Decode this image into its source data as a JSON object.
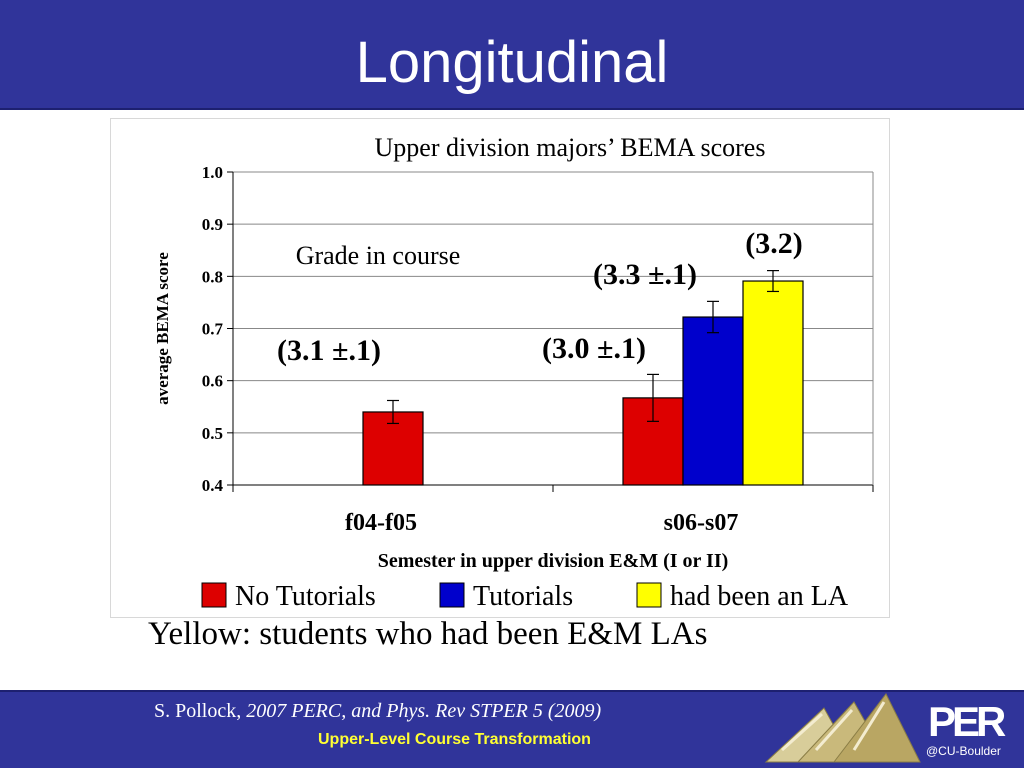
{
  "slide": {
    "title": "Longitudinal",
    "caption": "Yellow: students who had been E&M LAs",
    "citation_author": "S. Pollock, ",
    "citation_source": "2007 PERC, and Phys. Rev STPER 5 (2009)",
    "subtitle": "Upper-Level Course Transformation",
    "logo_text": "PER",
    "logo_sub": "@CU-Boulder",
    "header_color": "#30349a"
  },
  "chart_data": {
    "type": "bar",
    "title": "Upper division majors’ BEMA scores",
    "xlabel": "Semester in upper division E&M (I or II)",
    "ylabel": "average BEMA score",
    "ylim": [
      0.4,
      1.0
    ],
    "yticks": [
      "0.4",
      "0.5",
      "0.6",
      "0.7",
      "0.8",
      "0.9",
      "1.0"
    ],
    "categories": [
      "f04-f05",
      "s06-s07"
    ],
    "series": [
      {
        "name": "No Tutorials",
        "color": "#dd0000",
        "values": [
          0.54,
          0.567
        ],
        "errors": [
          0.022,
          0.045
        ]
      },
      {
        "name": "Tutorials",
        "color": "#0000cc",
        "values": [
          null,
          0.722
        ],
        "errors": [
          null,
          0.03
        ]
      },
      {
        "name": "had been an LA",
        "color": "#ffff00",
        "values": [
          null,
          0.791
        ],
        "errors": [
          null,
          0.02
        ]
      }
    ],
    "annotations": [
      {
        "text": "Grade in course"
      },
      {
        "text": "(3.1 ±.1)"
      },
      {
        "text": "(3.0 ±.1)"
      },
      {
        "text": "(3.3 ±.1)"
      },
      {
        "text": "(3.2)"
      }
    ]
  }
}
